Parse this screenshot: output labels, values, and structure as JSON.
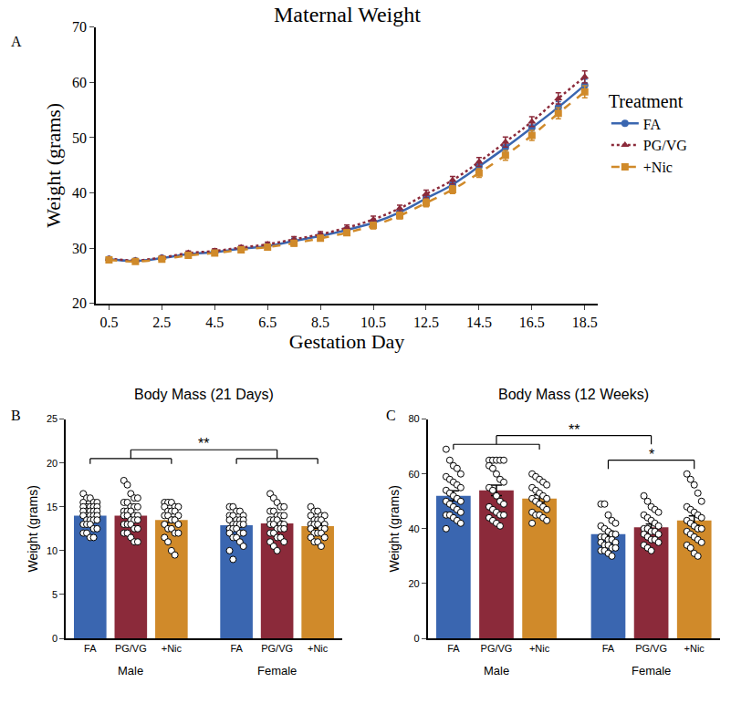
{
  "chart_data": [
    {
      "type": "line",
      "panel": "A",
      "title": "Maternal Weight",
      "x_label": "Gestation Day",
      "y_label": "Weight (grams)",
      "x": [
        0.5,
        1.5,
        2.5,
        3.5,
        4.5,
        5.5,
        6.5,
        7.5,
        8.5,
        9.5,
        10.5,
        11.5,
        12.5,
        13.5,
        14.5,
        15.5,
        16.5,
        17.5,
        18.5
      ],
      "xlim": [
        0,
        19
      ],
      "xticks": [
        0.5,
        2.5,
        4.5,
        6.5,
        8.5,
        10.5,
        12.5,
        14.5,
        16.5,
        18.5
      ],
      "ylim": [
        20,
        70
      ],
      "yticks": [
        20,
        30,
        40,
        50,
        60,
        70
      ],
      "legend": "right",
      "legend_title": "Treatment",
      "grid": false,
      "series": [
        {
          "name": "FA",
          "color": "#3a66b0",
          "marker": "circle",
          "line_style": "solid",
          "values": [
            28.0,
            27.7,
            28.2,
            28.9,
            29.3,
            29.9,
            30.4,
            31.3,
            32.2,
            33.3,
            34.6,
            36.5,
            39.0,
            41.5,
            44.8,
            48.2,
            51.8,
            55.5,
            59.5
          ],
          "errors": [
            0.3,
            0.3,
            0.3,
            0.4,
            0.4,
            0.4,
            0.4,
            0.5,
            0.5,
            0.5,
            0.6,
            0.6,
            0.7,
            0.7,
            0.8,
            0.9,
            0.9,
            1.0,
            1.1
          ]
        },
        {
          "name": "PG/VG",
          "color": "#8b2a3a",
          "marker": "triangle-up",
          "line_style": "dotted",
          "values": [
            28.1,
            27.8,
            28.3,
            29.1,
            29.5,
            30.1,
            30.7,
            31.6,
            32.5,
            33.7,
            35.2,
            37.2,
            39.8,
            42.3,
            45.6,
            49.2,
            52.9,
            57.1,
            61.0
          ],
          "errors": [
            0.3,
            0.3,
            0.3,
            0.4,
            0.4,
            0.4,
            0.4,
            0.5,
            0.5,
            0.5,
            0.6,
            0.6,
            0.7,
            0.7,
            0.8,
            0.9,
            0.9,
            1.0,
            1.1
          ]
        },
        {
          "name": "+Nic",
          "color": "#d08a2a",
          "marker": "square",
          "line_style": "dashed",
          "values": [
            27.9,
            27.6,
            28.0,
            28.7,
            29.1,
            29.7,
            30.2,
            30.9,
            31.8,
            32.8,
            34.1,
            35.9,
            38.2,
            40.6,
            43.6,
            46.8,
            50.4,
            54.4,
            58.3
          ],
          "errors": [
            0.3,
            0.3,
            0.3,
            0.4,
            0.4,
            0.4,
            0.4,
            0.5,
            0.5,
            0.5,
            0.6,
            0.6,
            0.7,
            0.7,
            0.8,
            0.9,
            0.9,
            1.0,
            1.1
          ]
        }
      ]
    },
    {
      "type": "bar",
      "panel": "B",
      "title": "Body Mass (21 Days)",
      "y_label": "Weight (grams)",
      "categories": [
        "FA",
        "PG/VG",
        "+Nic"
      ],
      "colors": [
        "#3a66b0",
        "#8b2a3a",
        "#d08a2a"
      ],
      "ylim": [
        0,
        25
      ],
      "yticks": [
        0,
        5,
        10,
        15,
        20,
        25
      ],
      "grid": false,
      "groups": [
        {
          "name": "Male",
          "values": [
            14.0,
            14.0,
            13.5
          ],
          "errors": [
            0.25,
            0.3,
            0.3
          ],
          "points": [
            [
              16.5,
              16,
              16,
              15.5,
              15.5,
              15.5,
              15,
              15,
              15,
              15,
              15,
              14.5,
              14.5,
              14.5,
              14.5,
              14.5,
              14,
              14,
              14,
              14,
              14,
              13.5,
              13.5,
              13.5,
              13.5,
              13,
              13,
              13,
              12.5,
              12.5,
              12,
              12,
              11.5,
              11.5
            ],
            [
              18,
              17.5,
              16.5,
              16,
              16,
              15.5,
              15.5,
              15,
              15,
              15,
              14.5,
              14.5,
              14.5,
              14,
              14,
              14,
              14,
              13.5,
              13.5,
              13.5,
              13,
              13,
              13,
              12.5,
              12.5,
              12,
              12,
              11.5,
              11,
              11
            ],
            [
              15.5,
              15.5,
              15.5,
              15,
              15,
              15,
              14.5,
              14.5,
              14.5,
              14,
              14,
              14,
              13.5,
              13.5,
              13,
              13,
              12.5,
              12.5,
              12,
              12,
              11.5,
              11,
              10,
              9.5
            ]
          ]
        },
        {
          "name": "Female",
          "values": [
            12.9,
            13.1,
            12.8
          ],
          "errors": [
            0.25,
            0.3,
            0.25
          ],
          "points": [
            [
              15,
              15,
              14.5,
              14.5,
              14,
              14,
              14,
              13.5,
              13.5,
              13.5,
              13.5,
              13,
              13,
              13,
              13,
              12.5,
              12.5,
              12.5,
              12,
              12,
              12,
              11.5,
              11.5,
              11,
              10.5,
              10,
              9
            ],
            [
              16.5,
              16,
              15.5,
              15,
              15,
              14.5,
              14.5,
              14,
              14,
              14,
              13.5,
              13.5,
              13.5,
              13,
              13,
              13,
              13,
              12.5,
              12.5,
              12.5,
              12,
              12,
              11.5,
              11.5,
              11,
              11,
              10.5,
              10
            ],
            [
              15,
              14.5,
              14.5,
              14,
              14,
              14,
              13.5,
              13.5,
              13.5,
              13,
              13,
              13,
              13,
              12.5,
              12.5,
              12.5,
              12,
              12,
              12,
              11.5,
              11.5,
              11,
              11,
              10.5
            ]
          ]
        }
      ],
      "brackets": [
        {
          "text": "**",
          "y": 21.5,
          "left": [
            0,
            2
          ],
          "right": [
            3,
            5
          ]
        }
      ]
    },
    {
      "type": "bar",
      "panel": "C",
      "title": "Body Mass (12 Weeks)",
      "y_label": "Weight (grams)",
      "categories": [
        "FA",
        "PG/VG",
        "+Nic"
      ],
      "colors": [
        "#3a66b0",
        "#8b2a3a",
        "#d08a2a"
      ],
      "ylim": [
        0,
        80
      ],
      "yticks": [
        0,
        20,
        40,
        60,
        80
      ],
      "grid": false,
      "groups": [
        {
          "name": "Male",
          "values": [
            52,
            54,
            51
          ],
          "errors": [
            1.8,
            1.9,
            1.3
          ],
          "points": [
            [
              69,
              65,
              63,
              62,
              60,
              59,
              58,
              57,
              56,
              55,
              54,
              53,
              52,
              51,
              50,
              50,
              49,
              48,
              47,
              46,
              45,
              45,
              44,
              43,
              42,
              40
            ],
            [
              65,
              65,
              65,
              65,
              65,
              63,
              62,
              60,
              58,
              57,
              55,
              54,
              52,
              50,
              49,
              48,
              47,
              46,
              45,
              45,
              44,
              43,
              42,
              41
            ],
            [
              60,
              59,
              58,
              57,
              56,
              55,
              54,
              53,
              52,
              51,
              51,
              50,
              49,
              48,
              47,
              46,
              45,
              45,
              44,
              43,
              42
            ]
          ]
        },
        {
          "name": "Female",
          "values": [
            38,
            40.5,
            43
          ],
          "errors": [
            1.2,
            1.2,
            1.7
          ],
          "points": [
            [
              49,
              49,
              45,
              43,
              42,
              41,
              40,
              39,
              38,
              38,
              37,
              37,
              36,
              36,
              35,
              35,
              34,
              34,
              33,
              33,
              32,
              32,
              31,
              30
            ],
            [
              52,
              50,
              48,
              47,
              46,
              45,
              44,
              43,
              42,
              41,
              40,
              40,
              39,
              39,
              38,
              38,
              37,
              36,
              36,
              35,
              34,
              33,
              32
            ],
            [
              60,
              58,
              56,
              53,
              50,
              48,
              47,
              46,
              45,
              44,
              43,
              42,
              41,
              40,
              40,
              39,
              38,
              37,
              36,
              35,
              34,
              33,
              31,
              30
            ]
          ]
        }
      ],
      "brackets": [
        {
          "text": "**",
          "y": 74,
          "left": [
            0,
            2
          ],
          "right": [
            4,
            4
          ]
        },
        {
          "text": "*",
          "y": 65,
          "left": [
            3,
            3
          ],
          "right": [
            5,
            5
          ]
        }
      ]
    }
  ]
}
